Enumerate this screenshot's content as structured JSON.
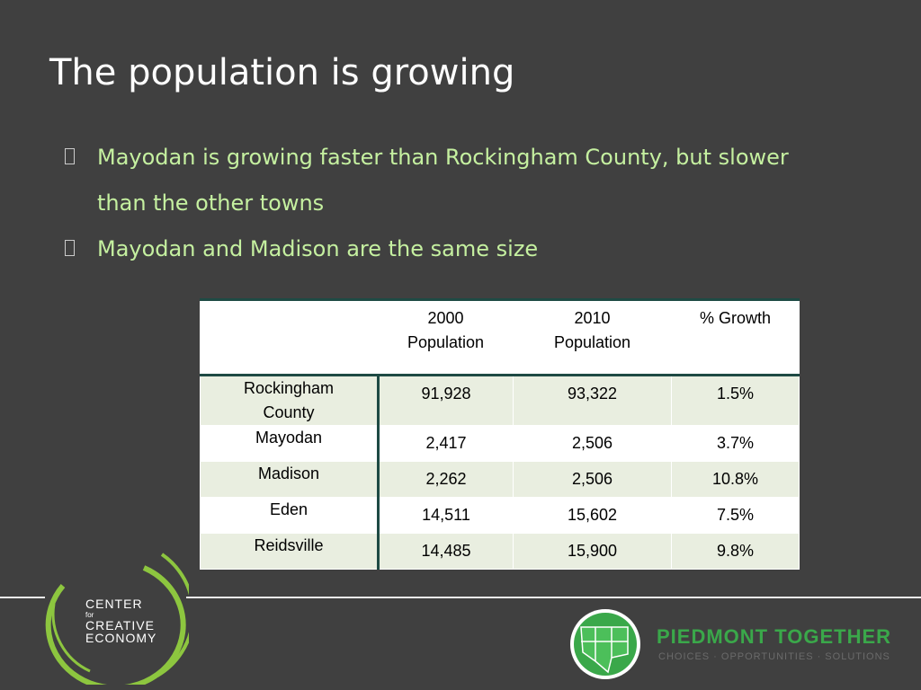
{
  "header": {
    "title": "The population is growing"
  },
  "bullets": [
    "Mayodan is growing faster than Rockingham County, but slower than the other towns",
    "Mayodan and Madison are the same size"
  ],
  "table": {
    "header": [
      [],
      [
        "2000",
        "Population"
      ],
      [
        "2010",
        "Population"
      ],
      [
        "% Growth"
      ]
    ],
    "rows": [
      [
        "Rockingham County",
        "91,928",
        "93,322",
        "1.5%"
      ],
      [
        "Mayodan",
        "2,417",
        "2,506",
        "3.7%"
      ],
      [
        "Madison",
        "2,262",
        "2,506",
        "10.8%"
      ],
      [
        "Eden",
        "14,511",
        "15,602",
        "7.5%"
      ],
      [
        "Reidsville",
        "14,485",
        "15,900",
        "9.8%"
      ]
    ]
  },
  "logos": {
    "left": [
      "CENTER",
      "for",
      "CREATIVE",
      "ECONOMY"
    ],
    "right": {
      "name": "PIEDMONT TOGETHER",
      "tagline": "CHOICES · OPPORTUNITIES · SOLUTIONS"
    }
  }
}
